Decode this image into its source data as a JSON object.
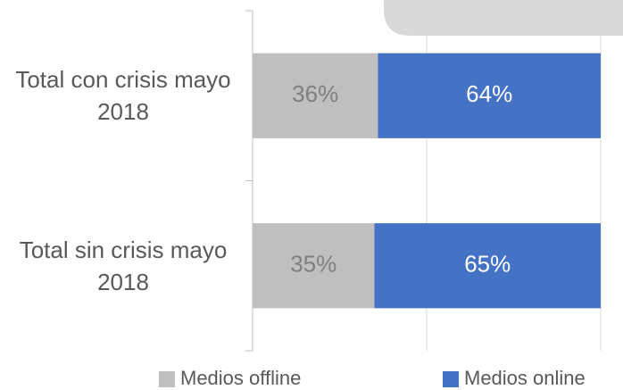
{
  "chart_data": {
    "type": "stacked_barh",
    "categories": [
      "Total con crisis mayo 2018",
      "Total sin crisis mayo 2018"
    ],
    "series": [
      {
        "name": "Medios offline",
        "color": "#bfbfbf",
        "values": [
          36,
          35
        ],
        "value_labels": [
          "36%",
          "35%"
        ]
      },
      {
        "name": "Medios online",
        "color": "#4472c4",
        "values": [
          64,
          65
        ],
        "value_labels": [
          "64%",
          "65%"
        ]
      }
    ],
    "xlim": [
      0,
      100
    ],
    "xticks": [
      0,
      50,
      100
    ],
    "grid": true,
    "legend": "bottom"
  }
}
